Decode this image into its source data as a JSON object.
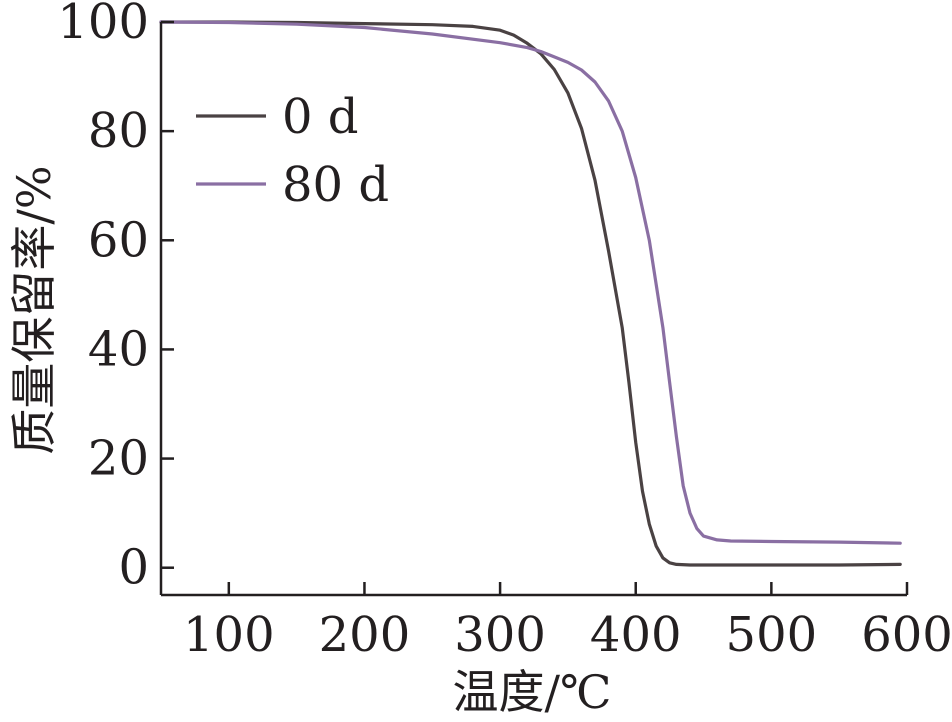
{
  "chart_data": {
    "type": "line",
    "xlabel": "温度/℃",
    "ylabel": "质量保留率/%",
    "xlim": [
      50,
      600
    ],
    "ylim": [
      -5,
      100
    ],
    "xticks": [
      100,
      200,
      300,
      400,
      500,
      600
    ],
    "yticks": [
      0,
      20,
      40,
      60,
      80,
      100
    ],
    "grid": false,
    "legend_position": "upper-left",
    "series": [
      {
        "name": "0 d",
        "color": "#4a4243",
        "x": [
          50,
          100,
          150,
          200,
          250,
          280,
          300,
          310,
          320,
          330,
          340,
          350,
          360,
          370,
          380,
          390,
          395,
          400,
          405,
          410,
          415,
          420,
          425,
          430,
          440,
          450,
          500,
          550,
          595
        ],
        "y": [
          100,
          100,
          99.9,
          99.7,
          99.5,
          99.2,
          98.5,
          97.6,
          96.1,
          94.2,
          91.3,
          87,
          80.5,
          71,
          58,
          44,
          34,
          23,
          14,
          8,
          4,
          1.8,
          0.9,
          0.6,
          0.5,
          0.5,
          0.5,
          0.5,
          0.6
        ]
      },
      {
        "name": "80 d",
        "color": "#8a6fa3",
        "x": [
          50,
          100,
          150,
          200,
          250,
          300,
          320,
          330,
          340,
          350,
          360,
          370,
          380,
          390,
          400,
          410,
          420,
          425,
          430,
          435,
          440,
          445,
          450,
          460,
          470,
          500,
          550,
          595
        ],
        "y": [
          100,
          99.9,
          99.6,
          99,
          97.8,
          96.2,
          95.3,
          94.6,
          93.6,
          92.6,
          91.2,
          89,
          85.5,
          80,
          71.5,
          60,
          44,
          34,
          24,
          15,
          10,
          7.2,
          5.8,
          5.1,
          4.9,
          4.8,
          4.7,
          4.5
        ]
      }
    ]
  }
}
